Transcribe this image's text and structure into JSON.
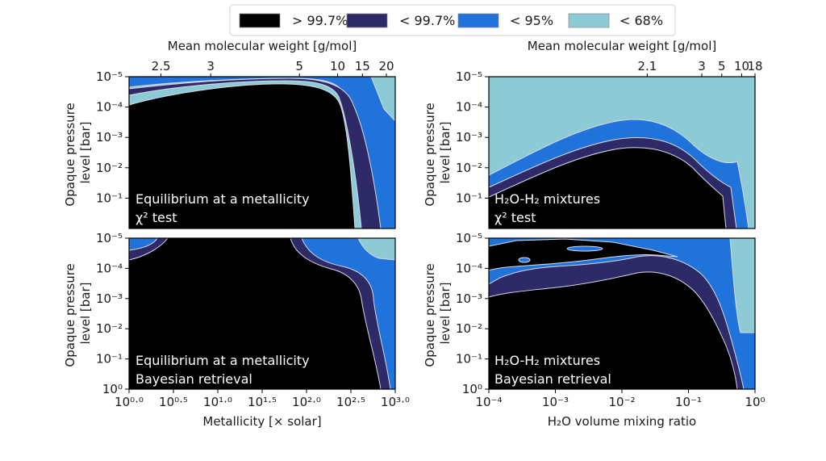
{
  "colors": {
    "c997plus": "#000000",
    "c997": "#2e2a68",
    "c95": "#1f73db",
    "c68": "#8ccbd6",
    "contour": "#d8d8e8"
  },
  "legend": {
    "entries": [
      {
        "label": "> 99.7%",
        "color_key": "c997plus"
      },
      {
        "label": "< 99.7%",
        "color_key": "c997"
      },
      {
        "label": "< 95%",
        "color_key": "c95"
      },
      {
        "label": "< 68%",
        "color_key": "c68"
      }
    ]
  },
  "chart_data": [
    {
      "type": "contour",
      "panel": "top-left",
      "title": "Equilibrium at a metallicity",
      "method": "χ² test",
      "top_axis_label": "Mean molecular weight [g/mol]",
      "top_ticks": [
        {
          "label": "2.5",
          "x": 0.36
        },
        {
          "label": "3",
          "x": 0.92
        },
        {
          "label": "5",
          "x": 1.92
        },
        {
          "label": "10",
          "x": 2.35
        },
        {
          "label": "15",
          "x": 2.63
        },
        {
          "label": "20",
          "x": 2.9
        }
      ],
      "ylabel": "Opaque pressure level [bar]",
      "yticks": [
        -5,
        -4,
        -3,
        -2,
        -1
      ],
      "yticks_label": [
        "10⁻⁵",
        "10⁻⁴",
        "10⁻³",
        "10⁻²",
        "10⁻¹"
      ],
      "xlabel": "",
      "xlim": [
        0,
        3
      ],
      "ylim_log10_bar": [
        -5,
        0
      ]
    },
    {
      "type": "contour",
      "panel": "top-right",
      "title": "H₂O-H₂ mixtures",
      "method": "χ² test",
      "top_axis_label": "Mean molecular weight [g/mol]",
      "top_ticks": [
        {
          "label": "2.1",
          "x": -1.62
        },
        {
          "label": "3",
          "x": -0.8
        },
        {
          "label": "5",
          "x": -0.5
        },
        {
          "label": "10",
          "x": -0.2
        },
        {
          "label": "18",
          "x": 0
        }
      ],
      "ylabel": "Opaque pressure level [bar]",
      "yticks": [
        -5,
        -4,
        -3,
        -2,
        -1
      ],
      "yticks_label": [
        "10⁻⁵",
        "10⁻⁴",
        "10⁻³",
        "10⁻²",
        "10⁻¹"
      ],
      "xlabel": "",
      "xlim": [
        -4,
        0
      ],
      "ylim_log10_bar": [
        -5,
        0
      ]
    },
    {
      "type": "contour",
      "panel": "bottom-left",
      "title": "Equilibrium at a metallicity",
      "method": "Bayesian retrieval",
      "ylabel": "Opaque pressure level [bar]",
      "yticks": [
        -5,
        -4,
        -3,
        -2,
        -1,
        0
      ],
      "yticks_label": [
        "10⁻⁵",
        "10⁻⁴",
        "10⁻³",
        "10⁻²",
        "10⁻¹",
        "10⁰"
      ],
      "xlabel": "Metallicity [× solar]",
      "xticks": [
        0,
        0.5,
        1,
        1.5,
        2,
        2.5,
        3
      ],
      "xticks_label": [
        "10⁰·⁰",
        "10⁰·⁵",
        "10¹·⁰",
        "10¹·⁵",
        "10²·⁰",
        "10²·⁵",
        "10³·⁰"
      ],
      "xlim": [
        0,
        3
      ],
      "ylim_log10_bar": [
        -5,
        0
      ]
    },
    {
      "type": "contour",
      "panel": "bottom-right",
      "title": "H₂O-H₂ mixtures",
      "method": "Bayesian retrieval",
      "ylabel": "Opaque pressure level [bar]",
      "yticks": [
        -5,
        -4,
        -3,
        -2,
        -1,
        0
      ],
      "yticks_label": [
        "10⁻⁵",
        "10⁻⁴",
        "10⁻³",
        "10⁻²",
        "10⁻¹",
        "10⁰"
      ],
      "xlabel": "H₂O volume mixing ratio",
      "xticks": [
        -4,
        -3,
        -2,
        -1,
        0
      ],
      "xticks_label": [
        "10⁻⁴",
        "10⁻³",
        "10⁻²",
        "10⁻¹",
        "10⁰"
      ],
      "xlim": [
        -4,
        0
      ],
      "ylim_log10_bar": [
        -5,
        0
      ]
    }
  ]
}
